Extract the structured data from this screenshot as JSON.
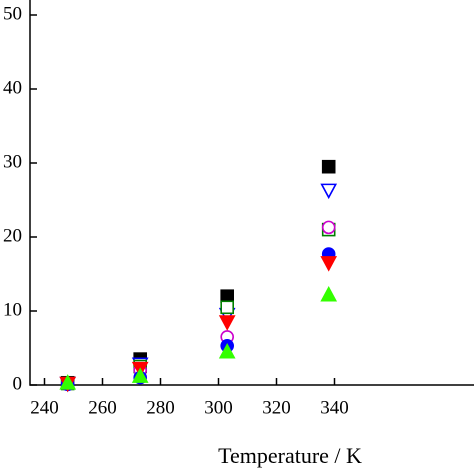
{
  "chart_data": {
    "type": "scatter",
    "xlabel": "Temperature / K",
    "x": [
      248,
      273,
      303,
      338
    ],
    "xlim": [
      235,
      385
    ],
    "xticks": [
      240,
      260,
      280,
      300,
      320,
      340
    ],
    "ylim": [
      0,
      50
    ],
    "yticks": [
      0,
      10,
      20,
      30,
      40,
      50
    ],
    "series": [
      {
        "color": "#000000",
        "marker": "square",
        "filled": true,
        "values": [
          0.3,
          3.5,
          12,
          29.5
        ]
      },
      {
        "color": "#0000ff",
        "marker": "triangle-down",
        "filled": false,
        "values": [
          0.2,
          2.8,
          9.5,
          26.3
        ]
      },
      {
        "color": "#008000",
        "marker": "square",
        "filled": false,
        "values": [
          0.2,
          2.5,
          10.5,
          21
        ]
      },
      {
        "color": "#cc00cc",
        "marker": "circle",
        "filled": false,
        "values": [
          0.2,
          2,
          6.5,
          21.3
        ]
      },
      {
        "color": "#0000ff",
        "marker": "circle",
        "filled": true,
        "values": [
          0.1,
          1,
          5.3,
          17.7
        ]
      },
      {
        "color": "#ff0000",
        "marker": "triangle-down",
        "filled": true,
        "values": [
          0.2,
          2.2,
          8.5,
          16.5
        ]
      },
      {
        "color": "#33ff00",
        "marker": "triangle-up",
        "filled": true,
        "values": [
          0.3,
          1.2,
          4.5,
          12.2
        ]
      }
    ]
  }
}
